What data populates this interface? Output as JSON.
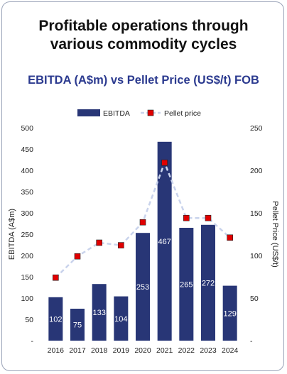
{
  "headline_line1": "Profitable operations through",
  "headline_line2": "various commodity cycles",
  "chart_data": {
    "type": "bar",
    "title": "EBITDA (A$m) vs Pellet Price (US$/t) FOB",
    "categories": [
      "2016",
      "2017",
      "2018",
      "2019",
      "2020",
      "2021",
      "2022",
      "2023",
      "2024"
    ],
    "series": [
      {
        "name": "EBITDA",
        "type": "bar",
        "axis": "left",
        "color": "#283676",
        "values": [
          102,
          75,
          133,
          104,
          253,
          467,
          265,
          272,
          129
        ]
      },
      {
        "name": "Pellet price",
        "type": "line",
        "axis": "right",
        "color": "#e00000",
        "line_color": "#c9d3ec",
        "values": [
          74,
          99,
          115,
          112,
          139,
          209,
          144,
          144,
          121
        ]
      }
    ],
    "ylabel": "EBITDA (A$m)",
    "y2label": "Pellet Price (US$/t)",
    "ylim": [
      0,
      500
    ],
    "y2lim": [
      0,
      250
    ],
    "yticks": [
      "-",
      "50",
      "100",
      "150",
      "200",
      "250",
      "300",
      "350",
      "400",
      "450",
      "500"
    ],
    "y2ticks": [
      "-",
      "50",
      "100",
      "150",
      "200",
      "250"
    ],
    "legend": "top-center",
    "grid": false
  }
}
